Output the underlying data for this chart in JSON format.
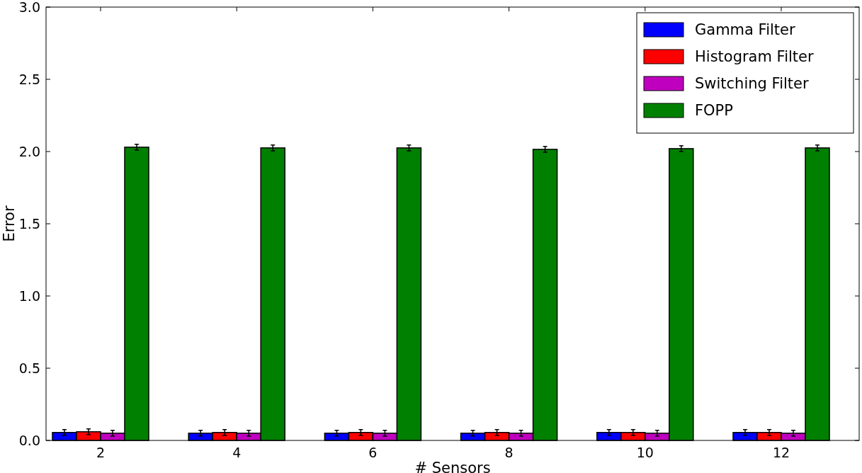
{
  "chart_data": {
    "type": "bar",
    "xlabel": "# Sensors",
    "ylabel": "Error",
    "categories": [
      "2",
      "4",
      "6",
      "8",
      "10",
      "12"
    ],
    "series": [
      {
        "name": "Gamma Filter",
        "color": "#0000ff",
        "values": [
          0.055,
          0.05,
          0.05,
          0.05,
          0.055,
          0.055
        ],
        "errors": [
          0.02,
          0.02,
          0.02,
          0.02,
          0.02,
          0.02
        ]
      },
      {
        "name": "Histogram Filter",
        "color": "#ff0000",
        "values": [
          0.06,
          0.055,
          0.055,
          0.055,
          0.055,
          0.055
        ],
        "errors": [
          0.02,
          0.02,
          0.02,
          0.02,
          0.02,
          0.02
        ]
      },
      {
        "name": "Switching Filter",
        "color": "#bf00bf",
        "values": [
          0.05,
          0.05,
          0.05,
          0.05,
          0.05,
          0.05
        ],
        "errors": [
          0.02,
          0.02,
          0.02,
          0.02,
          0.02,
          0.02
        ]
      },
      {
        "name": "FOPP",
        "color": "#008000",
        "values": [
          2.03,
          2.025,
          2.025,
          2.015,
          2.02,
          2.025
        ],
        "errors": [
          0.02,
          0.02,
          0.02,
          0.02,
          0.02,
          0.02
        ]
      }
    ],
    "ylim": [
      0,
      3
    ],
    "yticks": [
      {
        "value": 0,
        "label": "0.0"
      },
      {
        "value": 0.5,
        "label": "0.5"
      },
      {
        "value": 1,
        "label": "1.0"
      },
      {
        "value": 1.5,
        "label": "1.5"
      },
      {
        "value": 2,
        "label": "2.0"
      },
      {
        "value": 2.5,
        "label": "2.5"
      },
      {
        "value": 3,
        "label": "3.0"
      }
    ],
    "grid": false,
    "legend": "top right"
  }
}
